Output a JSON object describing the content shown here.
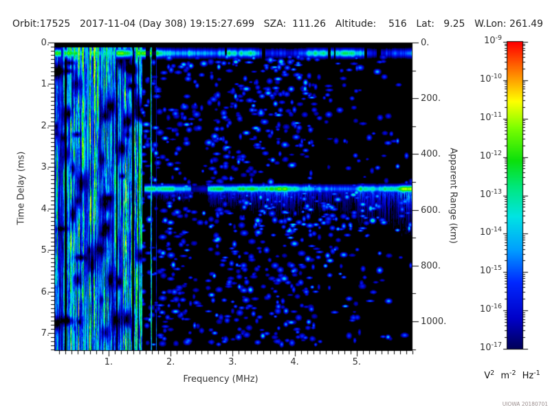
{
  "header": {
    "parts": [
      "Orbit:17525",
      "2017-11-04 (Day 308) 19:15:27.699",
      "SZA:  111.26",
      "Altitude:    516",
      "Lat:   9.25",
      "W.Lon: 261.49"
    ]
  },
  "axes": {
    "x": {
      "title": "Frequency (MHz)",
      "tick_values": [
        1,
        2,
        3,
        4,
        5
      ],
      "tick_labels": [
        "1.",
        "2.",
        "3.",
        "4.",
        "5."
      ],
      "minor_step": 0.1
    },
    "y": {
      "title": "Time Delay (ms)",
      "tick_values": [
        0,
        1,
        2,
        3,
        4,
        5,
        6,
        7
      ],
      "tick_labels": [
        "0.",
        "1.",
        "2.",
        "3.",
        "4.",
        "5.",
        "6.",
        "7."
      ],
      "minor_step": 0.1
    },
    "y2": {
      "title": "Apparent Range (km)",
      "tick_values": [
        0,
        200,
        400,
        600,
        800,
        1000
      ],
      "tick_labels": [
        "0.",
        "200.",
        "400.",
        "600.",
        "800.",
        "1000."
      ],
      "minor_step": 100
    }
  },
  "colorbar": {
    "base": "10",
    "tick_exponents": [
      "-9",
      "-10",
      "-11",
      "-12",
      "-13",
      "-14",
      "-15",
      "-16",
      "-17"
    ],
    "unit_parts": [
      {
        "b": "V",
        "s": "2"
      },
      {
        "b": "m",
        "s": "-2"
      },
      {
        "b": "Hz",
        "s": "-1"
      }
    ]
  },
  "watermark": "UIOWA 20180701",
  "chart_data": {
    "type": "heatmap",
    "title": "MARSIS-style ionogram spectrogram",
    "xlabel": "Frequency (MHz)",
    "ylabel": "Time Delay (ms)",
    "y2label": "Apparent Range (km)",
    "x_range_mhz": [
      0.125,
      5.9
    ],
    "y_range_ms": [
      0,
      7.43
    ],
    "y2_range_km": [
      0,
      1106
    ],
    "colorbar_range": {
      "max": "1e-9",
      "min": "1e-17",
      "units": "V^2 m^-2 Hz^-1",
      "scale": "log"
    },
    "background": "#000000",
    "palette_stops": [
      [
        0.0,
        "#000000"
      ],
      [
        0.07,
        "#00005a"
      ],
      [
        0.16,
        "#0000c8"
      ],
      [
        0.27,
        "#0028ff"
      ],
      [
        0.37,
        "#00a0ff"
      ],
      [
        0.47,
        "#00e4e4"
      ],
      [
        0.56,
        "#00e87d"
      ],
      [
        0.64,
        "#0ce00c"
      ],
      [
        0.74,
        "#7dff00"
      ],
      [
        0.82,
        "#ffff00"
      ],
      [
        0.9,
        "#ff8c00"
      ],
      [
        1.0,
        "#ff0000"
      ]
    ],
    "features": {
      "seed": 20171104,
      "blackout_delay_ms": 0.1,
      "noise_stripes": {
        "freq_min_mhz": 0.125,
        "freq_max_mhz": 1.55,
        "description": "dense vertical green/cyan/blue interference stripes spanning all delays below ~1.6 MHz"
      },
      "thin_stripes": [
        {
          "f": 1.675,
          "w": 2,
          "amp": 0.52
        },
        {
          "f": 1.76,
          "w": 1,
          "amp": 0.3
        }
      ],
      "dark_patches": 55,
      "first_return_band": {
        "delay_ms": 0.25,
        "sigma_ms": 0.1,
        "description": "bright green horizontal band near zero delay across all frequencies, black strip above"
      },
      "surface_echo_band": {
        "delay_ms": 3.52,
        "sigma_ms": 0.09,
        "freq_min_mhz": 1.58,
        "gap_freq_mhz": [
          2.33,
          2.6
        ],
        "description": "surface reflection: green/cyan band at ~3.5 ms (~520 km apparent range) with diffuse tail below, widening toward high frequency"
      },
      "speckle": {
        "count": 1400,
        "description": "scattered blue noise blobs over black background, densest 1.6-4 MHz, sparse above 4.3 MHz"
      }
    }
  }
}
